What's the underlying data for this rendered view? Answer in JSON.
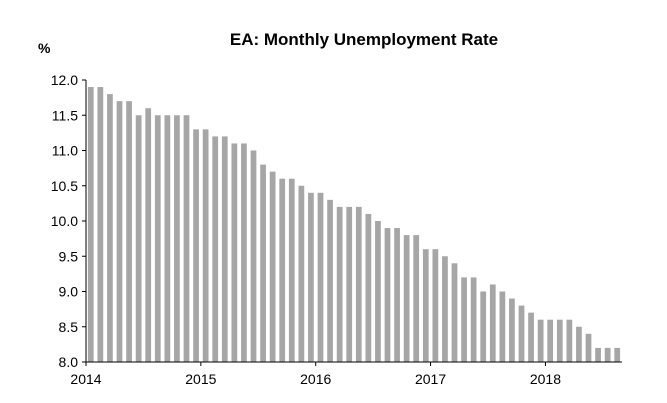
{
  "chart_data": {
    "type": "bar",
    "title": "EA: Monthly Unemployment Rate",
    "ylabel": "%",
    "xlabel": "",
    "ylim": [
      8.0,
      12.0
    ],
    "yticks": [
      "12.0",
      "11.5",
      "11.0",
      "10.5",
      "10.0",
      "9.5",
      "9.0",
      "8.5",
      "8.0"
    ],
    "xticks": [
      "2014",
      "2015",
      "2016",
      "2017",
      "2018"
    ],
    "grid": false,
    "legend": "none",
    "bar_color": "#a6a6a6",
    "series": [
      {
        "values": [
          11.9,
          11.9,
          11.8,
          11.7,
          11.7,
          11.5,
          11.6,
          11.5,
          11.5,
          11.5,
          11.5,
          11.3,
          11.3,
          11.2,
          11.2,
          11.1,
          11.1,
          11.0,
          10.8,
          10.7,
          10.6,
          10.6,
          10.5,
          10.4,
          10.4,
          10.3,
          10.2,
          10.2,
          10.2,
          10.1,
          10.0,
          9.9,
          9.9,
          9.8,
          9.8,
          9.6,
          9.6,
          9.5,
          9.4,
          9.2,
          9.2,
          9.0,
          9.1,
          9.0,
          8.9,
          8.8,
          8.7,
          8.6,
          8.6,
          8.6,
          8.6,
          8.5,
          8.4,
          8.2,
          8.2,
          8.2
        ]
      }
    ]
  }
}
